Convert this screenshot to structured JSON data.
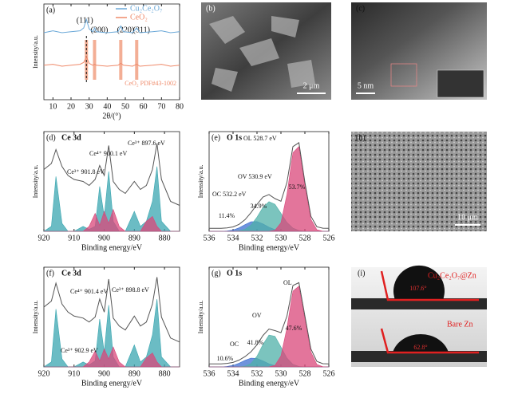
{
  "chart_data": [
    {
      "type": "line",
      "panel": "(a)",
      "ylabel": "Intensity/a.u.",
      "xlabel": "2θ/(°)",
      "legend": "top",
      "xlim": [
        5,
        80
      ],
      "ylim": [
        0,
        10
      ],
      "xticks": [
        10,
        20,
        30,
        40,
        50,
        60,
        70,
        80
      ],
      "x": [
        5,
        10,
        15,
        20,
        25,
        27,
        28.5,
        30,
        32,
        33,
        34,
        40,
        46,
        47.5,
        49,
        54,
        56.3,
        58,
        65,
        70,
        75,
        80
      ],
      "series": [
        {
          "name": "Cu₂Ce₂O₇",
          "color": "#6aa8d8",
          "values": [
            7,
            7.2,
            7.0,
            7.1,
            7.2,
            7.5,
            8.4,
            7.4,
            7.1,
            7.5,
            7.1,
            7.0,
            7.1,
            7.7,
            7.1,
            7.0,
            7.5,
            7.0,
            7.1,
            7.2,
            7.0,
            7.1
          ]
        },
        {
          "name": "CeO₂",
          "color": "#ef8a6a",
          "values": [
            3.6,
            3.7,
            3.5,
            3.6,
            3.7,
            3.9,
            4.5,
            3.8,
            3.6,
            3.7,
            3.6,
            3.5,
            3.6,
            3.8,
            3.6,
            3.5,
            3.7,
            3.5,
            3.6,
            3.7,
            3.5,
            3.6
          ]
        }
      ],
      "reference_lines": {
        "x": [
          28.5,
          33,
          47.5,
          56.3
        ],
        "color": "#f2a58a",
        "labels": [
          "(111)",
          "(200)",
          "(220)",
          "(311)"
        ]
      },
      "reference_name": "CeO₂ PDF#43-1002"
    },
    {
      "type": "xps",
      "panel": "(d)",
      "title": "Ce 3d",
      "ylabel": "Intensity/a.u.",
      "xlabel": "Binding energy/eV",
      "xlim": [
        920,
        875
      ],
      "ylim": [
        0,
        10
      ],
      "xticks": [
        920,
        910,
        900,
        890,
        880
      ],
      "x": [
        920,
        917.5,
        916,
        914,
        912,
        910,
        907,
        905,
        903,
        901.5,
        900,
        898.5,
        897,
        895,
        893,
        890,
        888,
        886,
        884,
        882.5,
        881,
        878,
        875
      ],
      "series": [
        {
          "color": "#3aa6b0",
          "fill": true,
          "values": [
            0,
            0.5,
            5.5,
            0.8,
            0,
            0,
            0.5,
            0.2,
            0.5,
            4.5,
            1.5,
            6.0,
            1.0,
            0,
            0,
            2.0,
            0.5,
            1.0,
            3.0,
            6.5,
            1.0,
            0,
            0
          ]
        },
        {
          "color": "#d9477a",
          "fill": true,
          "values": [
            0,
            0,
            0,
            0,
            0,
            0,
            0,
            0.5,
            1.8,
            0.6,
            2.0,
            0.8,
            2.2,
            0.5,
            0,
            0,
            0,
            1.0,
            1.5,
            0.5,
            0,
            0,
            0
          ]
        },
        {
          "color": "#555555",
          "values": [
            6.2,
            6.8,
            8.2,
            6.5,
            5.6,
            5.2,
            5.0,
            4.6,
            5.2,
            6.6,
            5.6,
            8.6,
            5.0,
            4.2,
            3.8,
            5.0,
            4.2,
            4.6,
            6.2,
            8.8,
            5.2,
            3.0,
            2.6
          ]
        }
      ],
      "annotations": [
        "Ce⁴⁺ 900.1 eV",
        "Ce³⁺ 897.6 eV",
        "Ce³⁺ 901.8 eV"
      ]
    },
    {
      "type": "xps",
      "panel": "(e)",
      "title": "O 1s",
      "ylabel": "Intensity/a.u.",
      "xlabel": "Binding energy/eV",
      "xlim": [
        536,
        526
      ],
      "ylim": [
        0,
        10
      ],
      "xticks": [
        536,
        534,
        532,
        530,
        528,
        526
      ],
      "x": [
        536,
        535.5,
        535,
        534.5,
        534,
        533.5,
        533,
        532.5,
        532,
        531.5,
        531,
        530.5,
        530,
        529.5,
        529,
        528.5,
        528,
        527.5,
        527,
        526.5,
        526
      ],
      "series": [
        {
          "color": "#3d6fd0",
          "fill": true,
          "values": [
            0,
            0,
            0,
            0.04,
            0.13,
            0.35,
            0.67,
            0.95,
            0.98,
            0.74,
            0.41,
            0.17,
            0.05,
            0.01,
            0,
            0,
            0,
            0,
            0,
            0,
            0
          ]
        },
        {
          "color": "#4fb0a8",
          "fill": true,
          "values": [
            0,
            0,
            0,
            0,
            0.01,
            0.05,
            0.2,
            0.62,
            1.42,
            2.4,
            2.98,
            2.71,
            1.81,
            0.89,
            0.32,
            0.09,
            0.02,
            0,
            0,
            0,
            0
          ]
        },
        {
          "color": "#d9477a",
          "fill": true,
          "values": [
            0,
            0,
            0,
            0,
            0,
            0,
            0,
            0,
            0,
            0,
            0,
            0.1,
            0.86,
            3.69,
            7.88,
            8.5,
            4.6,
            1.21,
            0.16,
            0.01,
            0
          ]
        },
        {
          "color": "#555555",
          "values": [
            0.3,
            0.3,
            0.3,
            0.34,
            0.44,
            0.7,
            1.17,
            1.87,
            2.7,
            3.44,
            3.69,
            3.28,
            3.02,
            4.89,
            8.5,
            8.89,
            4.92,
            1.51,
            0.46,
            0.31,
            0.3
          ]
        }
      ],
      "annotations": [
        "OL 528.7 eV",
        "OV 530.9 eV",
        "OC 532.2 eV"
      ],
      "fractions": {
        "values": [
          53.7,
          34.9,
          11.4
        ],
        "value_labels": [
          "53.7%",
          "34.9%",
          "11.4%"
        ]
      }
    },
    {
      "type": "xps",
      "panel": "(f)",
      "title": "Ce 3d",
      "ylabel": "Intensity/a.u.",
      "xlabel": "Binding energy/eV",
      "xlim": [
        920,
        875
      ],
      "ylim": [
        0,
        10
      ],
      "xticks": [
        920,
        910,
        900,
        890,
        880
      ],
      "x": [
        920,
        917.5,
        916,
        914,
        912,
        910,
        907,
        905,
        903,
        901.5,
        900,
        898.5,
        897,
        895,
        893,
        890,
        888,
        886,
        884,
        882.5,
        881,
        878,
        875
      ],
      "series": [
        {
          "color": "#3aa6b0",
          "fill": true,
          "values": [
            0,
            0.5,
            5.8,
            0.8,
            0,
            0,
            0.5,
            0.2,
            0.6,
            4.8,
            1.5,
            6.2,
            1.0,
            0,
            0,
            2.2,
            0.5,
            1.0,
            3.2,
            6.8,
            1.0,
            0,
            0
          ]
        },
        {
          "color": "#d9477a",
          "fill": true,
          "values": [
            0,
            0,
            0,
            0,
            0,
            0,
            0,
            0.5,
            1.6,
            0.6,
            1.8,
            0.8,
            2.0,
            0.5,
            0,
            0,
            0,
            0.9,
            1.4,
            0.5,
            0,
            0,
            0
          ]
        },
        {
          "color": "#555555",
          "values": [
            6.0,
            6.6,
            8.4,
            6.3,
            5.5,
            5.1,
            4.9,
            4.5,
            5.0,
            6.8,
            5.5,
            8.8,
            4.9,
            4.1,
            3.7,
            5.1,
            4.1,
            4.5,
            6.3,
            9.0,
            5.0,
            2.9,
            2.5
          ]
        }
      ],
      "annotations": [
        "Ce⁴⁺ 901.4 eV",
        "Ce³⁺ 898.8 eV",
        "Ce³⁺ 902.9 eV"
      ]
    },
    {
      "type": "xps",
      "panel": "(g)",
      "title": "O 1s",
      "ylabel": "Intensity/a.u.",
      "xlabel": "Binding energy/eV",
      "xlim": [
        536,
        526
      ],
      "ylim": [
        0,
        10
      ],
      "xticks": [
        536,
        534,
        532,
        530,
        528,
        526
      ],
      "x": [
        536,
        535.5,
        535,
        534.5,
        534,
        533.5,
        533,
        532.5,
        532,
        531.5,
        531,
        530.5,
        530,
        529.5,
        529,
        528.5,
        528,
        527.5,
        527,
        526.5,
        526
      ],
      "series": [
        {
          "color": "#3d6fd0",
          "fill": true,
          "values": [
            0,
            0,
            0,
            0.05,
            0.15,
            0.37,
            0.66,
            0.88,
            0.85,
            0.6,
            0.31,
            0.12,
            0.03,
            0,
            0,
            0,
            0,
            0,
            0,
            0,
            0
          ]
        },
        {
          "color": "#4fb0a8",
          "fill": true,
          "values": [
            0,
            0,
            0,
            0,
            0,
            0.01,
            0.07,
            0.34,
            1.07,
            2.25,
            3.19,
            3.07,
            2.0,
            0.88,
            0.26,
            0.05,
            0.01,
            0,
            0,
            0,
            0
          ]
        },
        {
          "color": "#d9477a",
          "fill": true,
          "values": [
            0,
            0,
            0,
            0,
            0,
            0,
            0,
            0,
            0,
            0,
            0,
            0.15,
            1.1,
            3.9,
            7.6,
            8.1,
            4.8,
            1.5,
            0.25,
            0.02,
            0
          ]
        },
        {
          "color": "#555555",
          "values": [
            0.3,
            0.3,
            0.3,
            0.35,
            0.45,
            0.68,
            1.03,
            1.52,
            2.22,
            3.15,
            3.8,
            3.64,
            3.43,
            5.08,
            8.16,
            8.45,
            5.11,
            1.8,
            0.55,
            0.32,
            0.3
          ]
        }
      ],
      "annotations": [
        "OL",
        "OV",
        "OC"
      ],
      "fractions": {
        "values": [
          47.6,
          41.8,
          10.6
        ],
        "value_labels": [
          "47.6%",
          "41.8%",
          "10.6%"
        ]
      }
    }
  ],
  "figure_panels": {
    "b": {
      "panel": "(b)",
      "scale": "2 μm"
    },
    "c": {
      "panel": "(c)",
      "scale": "5 nm"
    },
    "h": {
      "panel": "(h)",
      "scale": "10 μm"
    },
    "i": {
      "panel": "(i)",
      "top": "Cu₂Ce₂O₇@Zn",
      "top_angle": "107.6°",
      "bottom": "Bare Zn",
      "bottom_angle": "62.8°"
    }
  }
}
